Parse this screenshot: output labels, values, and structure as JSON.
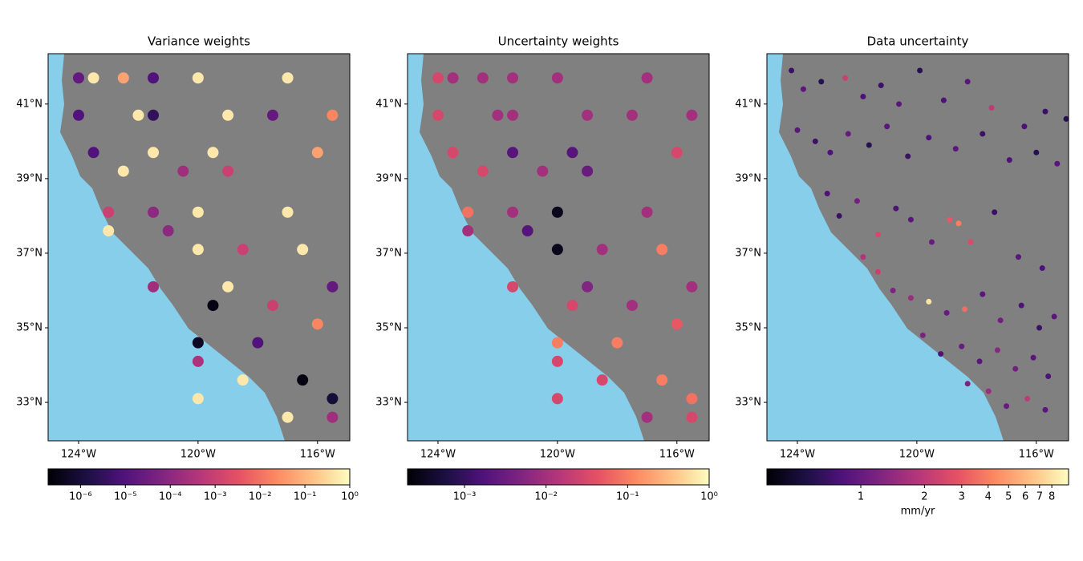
{
  "chart_data": [
    {
      "type": "scatter",
      "title": "Variance weights",
      "colormap": "magma",
      "x": [
        -124.0,
        -123.5,
        -122.5,
        -121.5,
        -120.0,
        -117.0,
        -124.0,
        -122.0,
        -121.5,
        -119.0,
        -117.5,
        -115.5,
        -123.5,
        -121.5,
        -119.5,
        -116.0,
        -122.5,
        -120.5,
        -119.0,
        -123.0,
        -121.5,
        -120.0,
        -117.0,
        -123.0,
        -121.0,
        -120.0,
        -118.5,
        -116.5,
        -121.5,
        -119.0,
        -115.5,
        -119.5,
        -117.5,
        -116.0,
        -120.0,
        -118.0,
        -120.0,
        -118.5,
        -116.5,
        -120.0,
        -115.5,
        -117.0,
        -115.5
      ],
      "y": [
        41.7,
        41.7,
        41.7,
        41.7,
        41.7,
        41.7,
        40.7,
        40.7,
        40.7,
        40.7,
        40.7,
        40.7,
        39.7,
        39.7,
        39.7,
        39.7,
        39.2,
        39.2,
        39.2,
        38.1,
        38.1,
        38.1,
        38.1,
        37.6,
        37.6,
        37.1,
        37.1,
        37.1,
        36.1,
        36.1,
        36.1,
        35.6,
        35.6,
        35.1,
        34.6,
        34.6,
        34.1,
        33.6,
        33.6,
        33.1,
        33.1,
        32.6,
        32.6
      ],
      "values": [
        2e-05,
        0.5,
        0.05,
        1e-05,
        0.5,
        0.5,
        1e-05,
        0.5,
        3e-06,
        0.5,
        2e-05,
        0.02,
        1e-05,
        0.5,
        0.5,
        0.05,
        0.5,
        0.0002,
        0.001,
        0.001,
        0.0001,
        0.5,
        0.5,
        0.5,
        0.0001,
        0.5,
        0.001,
        0.5,
        0.0002,
        0.5,
        2e-05,
        3e-07,
        0.001,
        0.02,
        5e-07,
        1e-05,
        0.0003,
        0.5,
        3e-07,
        0.5,
        1e-06,
        0.5,
        0.0002
      ],
      "xlim": [
        -125.02,
        -114.92
      ],
      "ylim": [
        31.97,
        42.35
      ],
      "xticks": [
        {
          "value": -124,
          "label": "124°W"
        },
        {
          "value": -120,
          "label": "120°W"
        },
        {
          "value": -116,
          "label": "116°W"
        }
      ],
      "yticks": [
        {
          "value": 33,
          "label": "33°N"
        },
        {
          "value": 35,
          "label": "35°N"
        },
        {
          "value": 37,
          "label": "37°N"
        },
        {
          "value": 39,
          "label": "39°N"
        },
        {
          "value": 41,
          "label": "41°N"
        }
      ],
      "colorbar": {
        "scale": "log",
        "clim": [
          1.9e-07,
          1
        ],
        "ticks": [
          {
            "value": 1e-06,
            "label": "10⁻⁶"
          },
          {
            "value": 1e-05,
            "label": "10⁻⁵"
          },
          {
            "value": 0.0001,
            "label": "10⁻⁴"
          },
          {
            "value": 0.001,
            "label": "10⁻³"
          },
          {
            "value": 0.01,
            "label": "10⁻²"
          },
          {
            "value": 0.1,
            "label": "10⁻¹"
          },
          {
            "value": 1,
            "label": "10⁰"
          }
        ]
      }
    },
    {
      "type": "scatter",
      "title": "Uncertainty weights",
      "colormap": "magma",
      "x": [
        -124.0,
        -123.5,
        -122.5,
        -121.5,
        -120.0,
        -117.0,
        -124.0,
        -122.0,
        -121.5,
        -119.0,
        -117.5,
        -115.5,
        -123.5,
        -121.5,
        -119.5,
        -116.0,
        -122.5,
        -120.5,
        -119.0,
        -123.0,
        -121.5,
        -120.0,
        -117.0,
        -123.0,
        -121.0,
        -120.0,
        -118.5,
        -116.5,
        -121.5,
        -119.0,
        -115.5,
        -119.5,
        -117.5,
        -116.0,
        -120.0,
        -118.0,
        -120.0,
        -118.5,
        -116.5,
        -120.0,
        -115.5,
        -117.0,
        -115.5
      ],
      "y": [
        41.7,
        41.7,
        41.7,
        41.7,
        41.7,
        41.7,
        40.7,
        40.7,
        40.7,
        40.7,
        40.7,
        40.7,
        39.7,
        39.7,
        39.7,
        39.7,
        39.2,
        39.2,
        39.2,
        38.1,
        38.1,
        38.1,
        38.1,
        37.6,
        37.6,
        37.1,
        37.1,
        37.1,
        36.1,
        36.1,
        36.1,
        35.6,
        35.6,
        35.1,
        34.6,
        34.6,
        34.1,
        33.6,
        33.6,
        33.1,
        33.1,
        32.6,
        32.6
      ],
      "values": [
        0.03,
        0.01,
        0.01,
        0.01,
        0.01,
        0.01,
        0.03,
        0.01,
        0.01,
        0.01,
        0.01,
        0.01,
        0.03,
        0.002,
        0.002,
        0.03,
        0.03,
        0.01,
        0.003,
        0.08,
        0.01,
        0.0003,
        0.01,
        0.01,
        0.002,
        0.0003,
        0.01,
        0.1,
        0.03,
        0.005,
        0.01,
        0.03,
        0.01,
        0.05,
        0.1,
        0.1,
        0.03,
        0.03,
        0.1,
        0.03,
        0.08,
        0.01,
        0.03
      ],
      "xlim": [
        -125.02,
        -114.92
      ],
      "ylim": [
        31.97,
        42.35
      ],
      "xticks": [
        {
          "value": -124,
          "label": "124°W"
        },
        {
          "value": -120,
          "label": "120°W"
        },
        {
          "value": -116,
          "label": "116°W"
        }
      ],
      "yticks": [
        {
          "value": 33,
          "label": "33°N"
        },
        {
          "value": 35,
          "label": "35°N"
        },
        {
          "value": 37,
          "label": "37°N"
        },
        {
          "value": 39,
          "label": "39°N"
        },
        {
          "value": 41,
          "label": "41°N"
        }
      ],
      "colorbar": {
        "scale": "log",
        "clim": [
          0.0002,
          1
        ],
        "ticks": [
          {
            "value": 0.001,
            "label": "10⁻³"
          },
          {
            "value": 0.01,
            "label": "10⁻²"
          },
          {
            "value": 0.1,
            "label": "10⁻¹"
          },
          {
            "value": 1,
            "label": "10⁰"
          }
        ]
      }
    },
    {
      "type": "scatter",
      "title": "Data uncertainty",
      "colormap": "magma",
      "x": [
        -124.2,
        -123.8,
        -123.2,
        -122.4,
        -121.8,
        -121.2,
        -120.6,
        -119.9,
        -119.1,
        -118.3,
        -117.5,
        -116.4,
        -115.7,
        -115.0,
        -124.0,
        -123.4,
        -122.9,
        -122.3,
        -121.6,
        -121.0,
        -120.3,
        -119.6,
        -118.7,
        -117.8,
        -116.9,
        -116.0,
        -115.3,
        -123.0,
        -122.6,
        -122.0,
        -121.3,
        -120.7,
        -120.2,
        -119.5,
        -118.9,
        -118.6,
        -118.2,
        -117.4,
        -116.6,
        -115.8,
        -121.8,
        -121.3,
        -120.8,
        -120.2,
        -119.6,
        -119.0,
        -118.4,
        -117.8,
        -117.2,
        -116.5,
        -115.9,
        -115.4,
        -119.8,
        -119.2,
        -118.5,
        -117.9,
        -117.3,
        -116.7,
        -116.1,
        -115.6,
        -118.3,
        -117.6,
        -117.0,
        -116.3,
        -115.7
      ],
      "y": [
        41.9,
        41.4,
        41.6,
        41.7,
        41.2,
        41.5,
        41.0,
        41.9,
        41.1,
        41.6,
        40.9,
        40.4,
        40.8,
        40.6,
        40.3,
        40.0,
        39.7,
        40.2,
        39.9,
        40.4,
        39.6,
        40.1,
        39.8,
        40.2,
        39.5,
        39.7,
        39.4,
        38.6,
        38.0,
        38.4,
        37.5,
        38.2,
        37.9,
        37.3,
        37.9,
        37.8,
        37.3,
        38.1,
        36.9,
        36.6,
        36.9,
        36.5,
        36.0,
        35.8,
        35.7,
        35.4,
        35.5,
        35.9,
        35.2,
        35.6,
        35.0,
        35.3,
        34.8,
        34.3,
        34.5,
        34.1,
        34.4,
        33.9,
        34.2,
        33.7,
        33.5,
        33.3,
        32.9,
        33.1,
        32.8
      ],
      "values": [
        0.7,
        0.9,
        0.6,
        2.2,
        0.8,
        0.7,
        0.9,
        0.6,
        0.8,
        0.9,
        2.0,
        0.8,
        0.7,
        0.6,
        0.9,
        0.7,
        0.8,
        1.0,
        0.6,
        0.9,
        0.7,
        0.8,
        0.9,
        0.7,
        0.8,
        0.6,
        0.9,
        0.8,
        0.7,
        1.1,
        2.5,
        0.8,
        0.9,
        1.0,
        3.0,
        4.0,
        2.6,
        0.7,
        0.9,
        0.8,
        1.8,
        2.2,
        1.2,
        1.5,
        8.0,
        1.0,
        3.5,
        0.9,
        1.1,
        0.8,
        0.7,
        0.9,
        1.2,
        0.8,
        1.0,
        0.9,
        1.3,
        1.1,
        0.9,
        0.8,
        1.2,
        1.5,
        1.0,
        2.0,
        0.9
      ],
      "xlim": [
        -125.02,
        -114.92
      ],
      "ylim": [
        31.97,
        42.35
      ],
      "xticks": [
        {
          "value": -124,
          "label": "124°W"
        },
        {
          "value": -120,
          "label": "120°W"
        },
        {
          "value": -116,
          "label": "116°W"
        }
      ],
      "yticks": [
        {
          "value": 33,
          "label": "33°N"
        },
        {
          "value": 35,
          "label": "35°N"
        },
        {
          "value": 37,
          "label": "37°N"
        },
        {
          "value": 39,
          "label": "39°N"
        },
        {
          "value": 41,
          "label": "41°N"
        }
      ],
      "colorbar": {
        "scale": "log",
        "clim": [
          0.36,
          9.6
        ],
        "ticks": [
          1,
          2,
          3,
          4,
          5,
          6,
          7,
          8
        ],
        "label": "mm/yr"
      }
    }
  ]
}
